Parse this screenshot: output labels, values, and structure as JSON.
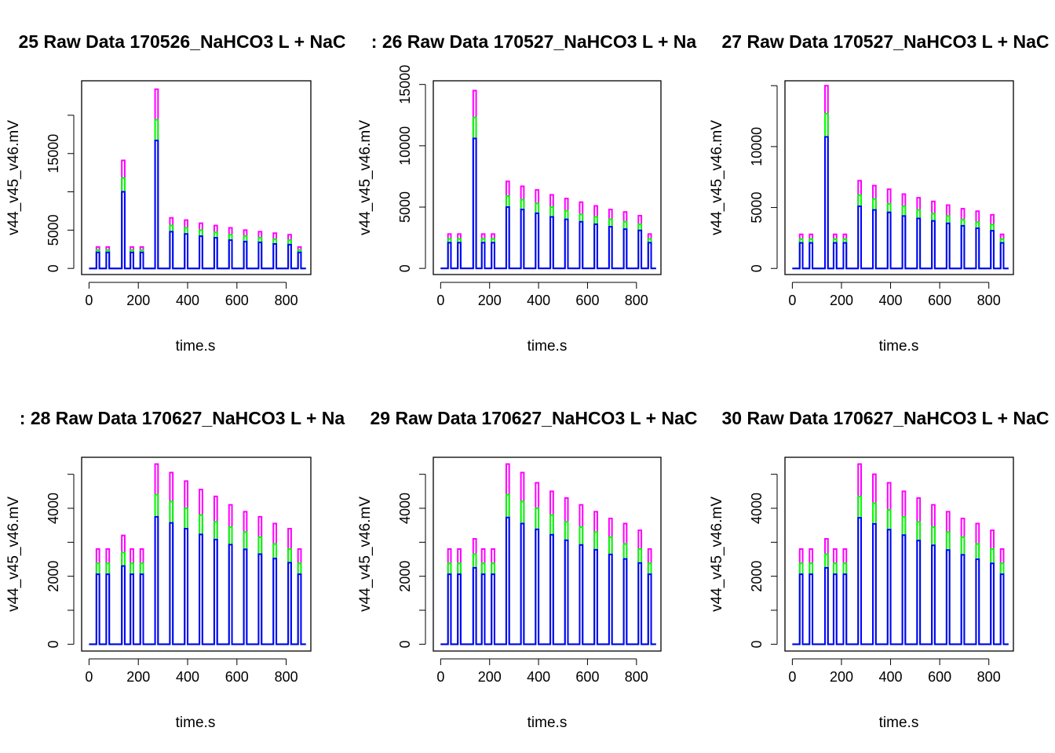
{
  "chart_data": [
    {
      "type": "line",
      "title": "25 Raw Data 170526_NaHCO3 L + NaC",
      "xlabel": "time.s",
      "ylabel": "v44_v45_v46.mV",
      "xlim": [
        -30,
        900
      ],
      "ylim": [
        -800,
        24500
      ],
      "xticks": [
        0,
        200,
        400,
        600,
        800
      ],
      "yticks": [
        0,
        5000,
        10000,
        15000,
        20000
      ],
      "ytick_labels": [
        "0",
        "5000",
        "",
        "15000",
        ""
      ],
      "pulse_width_s": 12,
      "pulse_starts_s": [
        30,
        70,
        133,
        168,
        208,
        268,
        328,
        388,
        448,
        508,
        568,
        628,
        688,
        748,
        808,
        848
      ],
      "series": [
        {
          "color": "#ff00ff",
          "values": [
            2800,
            2800,
            14100,
            2800,
            2800,
            23400,
            6600,
            6300,
            5900,
            5600,
            5300,
            5000,
            4800,
            4600,
            4400,
            2800
          ]
        },
        {
          "color": "#00ff00",
          "values": [
            2400,
            2400,
            11800,
            2400,
            2400,
            19400,
            5600,
            5300,
            5000,
            4700,
            4400,
            4200,
            4000,
            3800,
            3700,
            2400
          ]
        },
        {
          "color": "#0000ff",
          "values": [
            2100,
            2100,
            10000,
            2100,
            2100,
            16700,
            4800,
            4500,
            4200,
            4000,
            3700,
            3500,
            3400,
            3200,
            3100,
            2100
          ]
        }
      ]
    },
    {
      "type": "line",
      "title": ": 26 Raw Data 170527_NaHCO3 L + Na",
      "xlabel": "time.s",
      "ylabel": "v44_v45_v46.mV",
      "xlim": [
        -30,
        900
      ],
      "ylim": [
        -500,
        15300
      ],
      "xticks": [
        0,
        200,
        400,
        600,
        800
      ],
      "yticks": [
        0,
        5000,
        10000,
        15000
      ],
      "ytick_labels": [
        "0",
        "5000",
        "10000",
        "15000"
      ],
      "pulse_width_s": 12,
      "pulse_starts_s": [
        30,
        70,
        133,
        168,
        208,
        268,
        328,
        388,
        448,
        508,
        568,
        628,
        688,
        748,
        808,
        848
      ],
      "series": [
        {
          "color": "#ff00ff",
          "values": [
            2800,
            2800,
            14500,
            2800,
            2800,
            7100,
            6700,
            6400,
            6000,
            5700,
            5400,
            5100,
            4800,
            4600,
            4300,
            2800
          ]
        },
        {
          "color": "#00ff00",
          "values": [
            2400,
            2400,
            12300,
            2400,
            2400,
            5900,
            5600,
            5300,
            5000,
            4700,
            4400,
            4200,
            4000,
            3800,
            3600,
            2400
          ]
        },
        {
          "color": "#0000ff",
          "values": [
            2100,
            2100,
            10600,
            2100,
            2100,
            5000,
            4800,
            4500,
            4200,
            4000,
            3800,
            3600,
            3400,
            3200,
            3100,
            2100
          ]
        }
      ]
    },
    {
      "type": "line",
      "title": "27 Raw Data 170527_NaHCO3 L + NaC",
      "xlabel": "time.s",
      "ylabel": "v44_v45_v46.mV",
      "xlim": [
        -30,
        900
      ],
      "ylim": [
        -500,
        15400
      ],
      "xticks": [
        0,
        200,
        400,
        600,
        800
      ],
      "yticks": [
        0,
        5000,
        10000,
        15000
      ],
      "ytick_labels": [
        "0",
        "5000",
        "10000",
        ""
      ],
      "pulse_width_s": 12,
      "pulse_starts_s": [
        30,
        70,
        133,
        168,
        208,
        268,
        328,
        388,
        448,
        508,
        568,
        628,
        688,
        748,
        808,
        848
      ],
      "series": [
        {
          "color": "#ff00ff",
          "values": [
            2800,
            2800,
            15000,
            2800,
            2800,
            7200,
            6800,
            6500,
            6100,
            5800,
            5500,
            5200,
            4900,
            4700,
            4400,
            2800
          ]
        },
        {
          "color": "#00ff00",
          "values": [
            2400,
            2400,
            12700,
            2400,
            2400,
            6000,
            5700,
            5300,
            5100,
            4800,
            4500,
            4300,
            4000,
            3800,
            3600,
            2400
          ]
        },
        {
          "color": "#0000ff",
          "values": [
            2100,
            2100,
            10800,
            2100,
            2100,
            5100,
            4800,
            4600,
            4300,
            4100,
            3900,
            3700,
            3500,
            3300,
            3100,
            2100
          ]
        }
      ]
    },
    {
      "type": "line",
      "title": ": 28 Raw Data 170627_NaHCO3 L + Na",
      "xlabel": "time.s",
      "ylabel": "v44_v45_v46.mV",
      "xlim": [
        -30,
        900
      ],
      "ylim": [
        -200,
        5500
      ],
      "xticks": [
        0,
        200,
        400,
        600,
        800
      ],
      "yticks": [
        0,
        1000,
        2000,
        3000,
        4000,
        5000
      ],
      "ytick_labels": [
        "0",
        "",
        "2000",
        "",
        "4000",
        ""
      ],
      "pulse_width_s": 12,
      "pulse_starts_s": [
        30,
        70,
        133,
        168,
        208,
        268,
        328,
        388,
        448,
        508,
        568,
        628,
        688,
        748,
        808,
        848
      ],
      "series": [
        {
          "color": "#ff00ff",
          "values": [
            2800,
            2800,
            3200,
            2800,
            2800,
            5300,
            5050,
            4800,
            4550,
            4350,
            4100,
            3900,
            3750,
            3550,
            3400,
            2800
          ]
        },
        {
          "color": "#00ff00",
          "values": [
            2380,
            2380,
            2700,
            2380,
            2380,
            4400,
            4200,
            4000,
            3800,
            3600,
            3450,
            3300,
            3150,
            2950,
            2800,
            2380
          ]
        },
        {
          "color": "#0000ff",
          "values": [
            2060,
            2060,
            2300,
            2060,
            2060,
            3750,
            3570,
            3400,
            3230,
            3080,
            2930,
            2790,
            2650,
            2520,
            2400,
            2060
          ]
        }
      ]
    },
    {
      "type": "line",
      "title": "29 Raw Data 170627_NaHCO3 L + NaC",
      "xlabel": "time.s",
      "ylabel": "v44_v45_v46.mV",
      "xlim": [
        -30,
        900
      ],
      "ylim": [
        -200,
        5500
      ],
      "xticks": [
        0,
        200,
        400,
        600,
        800
      ],
      "yticks": [
        0,
        1000,
        2000,
        3000,
        4000,
        5000
      ],
      "ytick_labels": [
        "0",
        "",
        "2000",
        "",
        "4000",
        ""
      ],
      "pulse_width_s": 12,
      "pulse_starts_s": [
        30,
        70,
        133,
        168,
        208,
        268,
        328,
        388,
        448,
        508,
        568,
        628,
        688,
        748,
        808,
        848
      ],
      "series": [
        {
          "color": "#ff00ff",
          "values": [
            2800,
            2800,
            3100,
            2800,
            2800,
            5300,
            5050,
            4750,
            4500,
            4300,
            4100,
            3900,
            3700,
            3550,
            3350,
            2800
          ]
        },
        {
          "color": "#00ff00",
          "values": [
            2380,
            2380,
            2650,
            2380,
            2380,
            4400,
            4200,
            4000,
            3800,
            3600,
            3450,
            3300,
            3150,
            2950,
            2800,
            2380
          ]
        },
        {
          "color": "#0000ff",
          "values": [
            2060,
            2060,
            2250,
            2060,
            2060,
            3730,
            3550,
            3380,
            3220,
            3060,
            2920,
            2780,
            2640,
            2510,
            2390,
            2060
          ]
        }
      ]
    },
    {
      "type": "line",
      "title": "30 Raw Data 170627_NaHCO3 L + NaC",
      "xlabel": "time.s",
      "ylabel": "v44_v45_v46.mV",
      "xlim": [
        -30,
        900
      ],
      "ylim": [
        -200,
        5500
      ],
      "xticks": [
        0,
        200,
        400,
        600,
        800
      ],
      "yticks": [
        0,
        1000,
        2000,
        3000,
        4000,
        5000
      ],
      "ytick_labels": [
        "0",
        "",
        "2000",
        "",
        "4000",
        ""
      ],
      "pulse_width_s": 12,
      "pulse_starts_s": [
        30,
        70,
        133,
        168,
        208,
        268,
        328,
        388,
        448,
        508,
        568,
        628,
        688,
        748,
        808,
        848
      ],
      "series": [
        {
          "color": "#ff00ff",
          "values": [
            2800,
            2800,
            3100,
            2800,
            2800,
            5300,
            5000,
            4750,
            4500,
            4300,
            4100,
            3900,
            3700,
            3550,
            3350,
            2800
          ]
        },
        {
          "color": "#00ff00",
          "values": [
            2380,
            2380,
            2650,
            2380,
            2380,
            4350,
            4150,
            3950,
            3750,
            3600,
            3450,
            3300,
            3150,
            2950,
            2800,
            2380
          ]
        },
        {
          "color": "#0000ff",
          "values": [
            2060,
            2060,
            2250,
            2060,
            2060,
            3720,
            3540,
            3370,
            3210,
            3050,
            2910,
            2770,
            2630,
            2500,
            2380,
            2060
          ]
        }
      ]
    }
  ]
}
